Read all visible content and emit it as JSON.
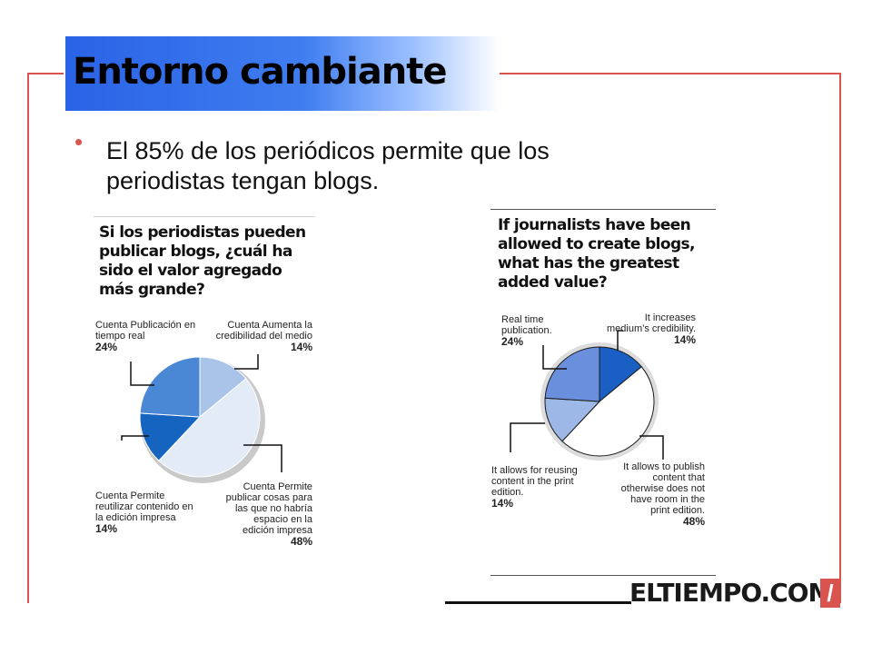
{
  "slide": {
    "title": "Entorno cambiante",
    "bullet": "El 85% de los periódicos permite que los periodistas tengan blogs.",
    "logo": "ELTIEMPO.COM",
    "logo_mark": "/",
    "accent_color": "#d9534f",
    "title_band_color": "#2a63e6"
  },
  "chart_data": [
    {
      "type": "pie",
      "title": "Si los periodistas pueden publicar blogs, ¿cuál ha sido el valor agregado más grande?",
      "slices": [
        {
          "label": "Cuenta Aumenta la credibilidad del medio",
          "value": 14,
          "value_label": "14%",
          "color": "#a9c4e8"
        },
        {
          "label": "Cuenta Permite publicar cosas para las que no habría espacio en la edición impresa",
          "value": 48,
          "value_label": "48%",
          "color": "#e3ebf7"
        },
        {
          "label": "Cuenta Permite reutilizar contenido en la edición impresa",
          "value": 14,
          "value_label": "14%",
          "color": "#1565c0"
        },
        {
          "label": "Cuenta Publicación en tiempo real",
          "value": 24,
          "value_label": "24%",
          "color": "#4a87d4"
        }
      ]
    },
    {
      "type": "pie",
      "title": "If journalists have been allowed to create blogs, what has the greatest added value?",
      "slices": [
        {
          "label": "It increases medium’s credibility.",
          "value": 14,
          "value_label": "14%",
          "color": "#1a5fc4"
        },
        {
          "label": "It allows to publish content that otherwise does not have room in the print edition.",
          "value": 48,
          "value_label": "48%",
          "color": "#ffffff"
        },
        {
          "label": "It allows for reusing content in the print edition.",
          "value": 14,
          "value_label": "14%",
          "color": "#9db8e6"
        },
        {
          "label": "Real time publication.",
          "value": 24,
          "value_label": "24%",
          "color": "#6a8fdc"
        }
      ]
    }
  ]
}
